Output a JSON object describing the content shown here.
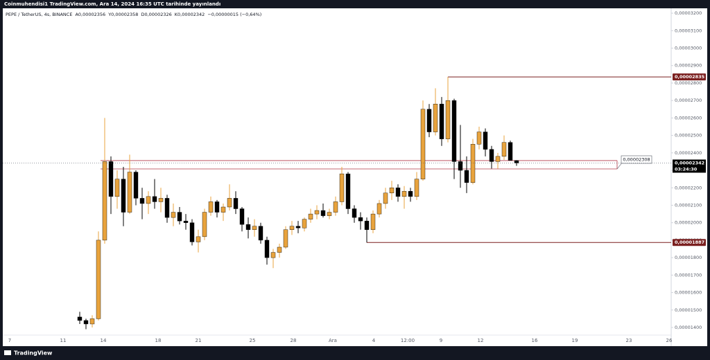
{
  "header": {
    "text": "Coinmuhendisi1 TradingView.com, Ara 14, 2024 16:35 UTC tarihinde yayınlandı"
  },
  "footer": {
    "brand": "TradingView"
  },
  "chart_data": {
    "type": "candlestick",
    "symbol": "PEPE / TetherUS, 4s, BINANCE",
    "legend_values": [
      "A0,00002356",
      "Y0,00002358",
      "D0,00002326",
      "K0,00002342",
      "−0,00000015 (−0,64%)"
    ],
    "up_color": "#e8a33d",
    "down_color": "#000000",
    "open": [
      1.46e-05,
      1.44e-05,
      1.42e-05,
      1.45e-05,
      1.9e-05,
      2.35e-05,
      2.15e-05,
      2.25e-05,
      2.06e-05,
      2.29e-05,
      2.14e-05,
      2.11e-05,
      2.15e-05,
      2.12e-05,
      2.14e-05,
      2.03e-05,
      2.06e-05,
      2.01e-05,
      2e-05,
      1.89e-05,
      1.92e-05,
      2.06e-05,
      2.12e-05,
      2.06e-05,
      2.09e-05,
      2.14e-05,
      2.08e-05,
      1.99e-05,
      1.96e-05,
      1.98e-05,
      1.9e-05,
      1.8e-05,
      1.83e-05,
      1.86e-05,
      1.96e-05,
      1.98e-05,
      1.97e-05,
      2.02e-05,
      2.05e-05,
      2.07e-05,
      2.04e-05,
      2.06e-05,
      2.12e-05,
      2.28e-05,
      2.08e-05,
      2.03e-05,
      2.01e-05,
      1.96e-05,
      2.05e-05,
      2.11e-05,
      2.17e-05,
      2.2e-05,
      2.15e-05,
      2.18e-05,
      2.15e-05,
      2.25e-05,
      2.65e-05,
      2.52e-05,
      2.68e-05,
      2.48e-05,
      2.7e-05,
      2.35e-05,
      2.3e-05,
      2.23e-05,
      2.45e-05,
      2.52e-05,
      2.42e-05,
      2.35e-05,
      2.38e-05,
      2.46e-05,
      2.356e-05
    ],
    "high": [
      1.49e-05,
      1.45e-05,
      1.47e-05,
      1.95e-05,
      2.6e-05,
      2.38e-05,
      2.3e-05,
      2.32e-05,
      2.39e-05,
      2.3e-05,
      2.2e-05,
      2.18e-05,
      2.25e-05,
      2.2e-05,
      2.16e-05,
      2.11e-05,
      2.09e-05,
      2.05e-05,
      2.02e-05,
      1.96e-05,
      2.08e-05,
      2.15e-05,
      2.13e-05,
      2.11e-05,
      2.22e-05,
      2.18e-05,
      2.09e-05,
      2.03e-05,
      2.02e-05,
      2e-05,
      1.92e-05,
      1.85e-05,
      1.88e-05,
      1.98e-05,
      2.01e-05,
      2.01e-05,
      2.03e-05,
      2.08e-05,
      2.1e-05,
      2.11e-05,
      2.08e-05,
      2.15e-05,
      2.32e-05,
      2.29e-05,
      2.1e-05,
      2.06e-05,
      2.03e-05,
      2.07e-05,
      2.13e-05,
      2.2e-05,
      2.24e-05,
      2.22e-05,
      2.21e-05,
      2.2e-05,
      2.29e-05,
      2.7e-05,
      2.68e-05,
      2.77e-05,
      2.72e-05,
      2.835e-05,
      2.71e-05,
      2.56e-05,
      2.38e-05,
      2.48e-05,
      2.55e-05,
      2.54e-05,
      2.44e-05,
      2.4e-05,
      2.5e-05,
      2.47e-05,
      2.358e-05
    ],
    "low": [
      1.42e-05,
      1.39e-05,
      1.4e-05,
      1.44e-05,
      1.88e-05,
      2.05e-05,
      2.08e-05,
      1.98e-05,
      2.05e-05,
      2.1e-05,
      2.02e-05,
      2.05e-05,
      2.08e-05,
      2.06e-05,
      2e-05,
      1.98e-05,
      1.99e-05,
      1.96e-05,
      1.87e-05,
      1.83e-05,
      1.9e-05,
      2.04e-05,
      2.03e-05,
      2.01e-05,
      2.07e-05,
      2.05e-05,
      1.95e-05,
      1.91e-05,
      1.92e-05,
      1.88e-05,
      1.76e-05,
      1.74e-05,
      1.8e-05,
      1.85e-05,
      1.93e-05,
      1.94e-05,
      1.95e-05,
      2e-05,
      2.02e-05,
      2.03e-05,
      2.02e-05,
      2.04e-05,
      2.1e-05,
      2.05e-05,
      2e-05,
      1.96e-05,
      1.887e-05,
      1.94e-05,
      2.03e-05,
      2.08e-05,
      2.13e-05,
      2.12e-05,
      2.08e-05,
      2.12e-05,
      2.13e-05,
      2.24e-05,
      2.49e-05,
      2.5e-05,
      2.44e-05,
      2.46e-05,
      2.25e-05,
      2.2e-05,
      2.17e-05,
      2.22e-05,
      2.42e-05,
      2.38e-05,
      2.31e-05,
      2.31e-05,
      2.36e-05,
      2.37e-05,
      2.326e-05
    ],
    "close": [
      1.44e-05,
      1.42e-05,
      1.45e-05,
      1.9e-05,
      2.35e-05,
      2.15e-05,
      2.25e-05,
      2.06e-05,
      2.29e-05,
      2.14e-05,
      2.11e-05,
      2.15e-05,
      2.12e-05,
      2.14e-05,
      2.03e-05,
      2.06e-05,
      2.01e-05,
      2e-05,
      1.89e-05,
      1.92e-05,
      2.06e-05,
      2.12e-05,
      2.06e-05,
      2.09e-05,
      2.14e-05,
      2.08e-05,
      1.99e-05,
      1.96e-05,
      1.98e-05,
      1.9e-05,
      1.8e-05,
      1.83e-05,
      1.86e-05,
      1.96e-05,
      1.98e-05,
      1.97e-05,
      2.02e-05,
      2.05e-05,
      2.07e-05,
      2.04e-05,
      2.06e-05,
      2.12e-05,
      2.28e-05,
      2.08e-05,
      2.03e-05,
      2.01e-05,
      1.96e-05,
      2.05e-05,
      2.11e-05,
      2.17e-05,
      2.2e-05,
      2.15e-05,
      2.18e-05,
      2.15e-05,
      2.25e-05,
      2.65e-05,
      2.52e-05,
      2.68e-05,
      2.48e-05,
      2.7e-05,
      2.35e-05,
      2.3e-05,
      2.23e-05,
      2.45e-05,
      2.52e-05,
      2.42e-05,
      2.35e-05,
      2.38e-05,
      2.46e-05,
      2.357e-05,
      2.342e-05
    ],
    "ylim": [
      1.293e-05,
      3.228e-05
    ],
    "yticks": [
      {
        "value": 1.4e-05,
        "label": "0,00001400"
      },
      {
        "value": 1.5e-05,
        "label": "0,00001500"
      },
      {
        "value": 1.6e-05,
        "label": "0,00001600"
      },
      {
        "value": 1.7e-05,
        "label": "0,00001700"
      },
      {
        "value": 1.8e-05,
        "label": "0,00001800"
      },
      {
        "value": 1.9e-05,
        "label": "0,00001900"
      },
      {
        "value": 2e-05,
        "label": "0,00002000"
      },
      {
        "value": 2.1e-05,
        "label": "0,00002100"
      },
      {
        "value": 2.2e-05,
        "label": "0,00002200"
      },
      {
        "value": 2.3e-05,
        "label": "0,00002300"
      },
      {
        "value": 2.4e-05,
        "label": "0,00002400"
      },
      {
        "value": 2.5e-05,
        "label": "0,00002500"
      },
      {
        "value": 2.6e-05,
        "label": "0,00002600"
      },
      {
        "value": 2.7e-05,
        "label": "0,00002700"
      },
      {
        "value": 2.8e-05,
        "label": "0,00002800"
      },
      {
        "value": 2.9e-05,
        "label": "0,00002900"
      },
      {
        "value": 3e-05,
        "label": "0,00003000"
      },
      {
        "value": 3.1e-05,
        "label": "0,00003100"
      },
      {
        "value": 3.2e-05,
        "label": "0,00003200"
      }
    ],
    "xticks": [
      "7",
      "11",
      "14",
      "18",
      "21",
      "25",
      "28",
      "Ara",
      "4",
      "12:00",
      "9",
      "12",
      "16",
      "19",
      "23",
      "26"
    ],
    "levels": [
      {
        "value": 2.835e-05,
        "label": "0,00002835",
        "color": "#7a1f1f"
      },
      {
        "value": 1.887e-05,
        "label": "0,00001887",
        "color": "#7a1f1f"
      }
    ],
    "zone": {
      "top": 2.356e-05,
      "bottom": 2.308e-05,
      "label": "0,00002308",
      "color": "#b23a48"
    },
    "last_price": {
      "value": 2.342e-05,
      "label": "0,00002342",
      "countdown": "03:24:30"
    }
  }
}
